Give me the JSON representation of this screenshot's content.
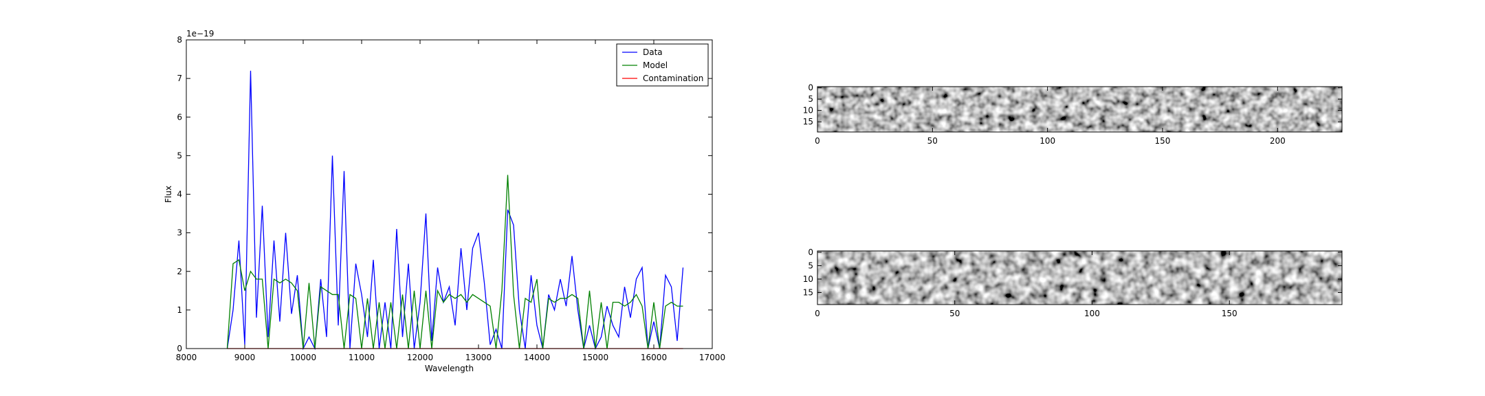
{
  "chart_data": [
    {
      "type": "line",
      "xlabel": "Wavelength",
      "ylabel": "Flux",
      "offset_text": "1e−19",
      "x": [
        8700,
        8800,
        8900,
        9000,
        9100,
        9200,
        9300,
        9400,
        9500,
        9600,
        9700,
        9800,
        9900,
        10000,
        10100,
        10200,
        10300,
        10400,
        10500,
        10600,
        10700,
        10800,
        10900,
        11000,
        11100,
        11200,
        11300,
        11400,
        11500,
        11600,
        11700,
        11800,
        11900,
        12000,
        12100,
        12200,
        12300,
        12400,
        12500,
        12600,
        12700,
        12800,
        12900,
        13000,
        13100,
        13200,
        13300,
        13400,
        13500,
        13600,
        13700,
        13800,
        13900,
        14000,
        14100,
        14200,
        14300,
        14400,
        14500,
        14600,
        14700,
        14800,
        14900,
        15000,
        15100,
        15200,
        15300,
        15400,
        15500,
        15600,
        15700,
        15800,
        15900,
        16000,
        16100,
        16200,
        16300,
        16400,
        16500
      ],
      "series": [
        {
          "name": "Data",
          "color": "#0000ff",
          "values": [
            0,
            1.0,
            2.8,
            0.1,
            7.2,
            0.8,
            3.7,
            0.3,
            2.8,
            0.7,
            3.0,
            0.9,
            1.9,
            0,
            0.3,
            0,
            1.8,
            0.3,
            5.0,
            0.6,
            4.6,
            0,
            2.2,
            1.4,
            0.3,
            2.3,
            0,
            1.2,
            0,
            3.1,
            0.3,
            2.2,
            0,
            1.2,
            3.5,
            0.2,
            2.1,
            1.2,
            1.6,
            0.6,
            2.6,
            1.0,
            2.6,
            3.0,
            1.7,
            0.1,
            0.5,
            0,
            3.6,
            3.2,
            1.0,
            0,
            1.9,
            0.6,
            0,
            1.4,
            1.0,
            1.8,
            1.1,
            2.4,
            1.0,
            0,
            0.6,
            0,
            0.3,
            1.1,
            0.6,
            0.3,
            1.6,
            0.8,
            1.8,
            2.1,
            0,
            0.7,
            0,
            1.9,
            1.6,
            0.2,
            2.1
          ]
        },
        {
          "name": "Model",
          "color": "#008000",
          "values": [
            0,
            2.2,
            2.3,
            1.5,
            2.0,
            1.8,
            1.8,
            0,
            1.8,
            1.7,
            1.8,
            1.7,
            1.5,
            0,
            1.7,
            0,
            1.6,
            1.5,
            1.4,
            1.4,
            0,
            1.4,
            1.3,
            0,
            1.3,
            0,
            1.2,
            0,
            1.2,
            0,
            1.4,
            0,
            1.5,
            0,
            1.5,
            0,
            1.5,
            1.2,
            1.4,
            1.3,
            1.4,
            1.2,
            1.4,
            1.3,
            1.2,
            1.1,
            0,
            1.5,
            4.5,
            1.4,
            0,
            1.3,
            1.2,
            1.8,
            0,
            1.3,
            1.2,
            1.3,
            1.3,
            1.4,
            1.3,
            0,
            1.5,
            0,
            1.2,
            0,
            1.2,
            1.2,
            1.1,
            1.2,
            1.4,
            1.1,
            0,
            1.2,
            0,
            1.1,
            1.2,
            1.1,
            1.1
          ]
        },
        {
          "name": "Contamination",
          "color": "#ff0000",
          "values": [
            0,
            0,
            0,
            0,
            0,
            0,
            0,
            0,
            0,
            0,
            0,
            0,
            0,
            0,
            0,
            0,
            0,
            0,
            0,
            0,
            0,
            0,
            0,
            0,
            0,
            0,
            0,
            0,
            0,
            0,
            0,
            0,
            0,
            0,
            0,
            0,
            0,
            0,
            0,
            0,
            0,
            0,
            0,
            0,
            0,
            0,
            0,
            0,
            0,
            0,
            0,
            0,
            0,
            0,
            0,
            0,
            0,
            0,
            0,
            0,
            0,
            0,
            0,
            0,
            0,
            0,
            0,
            0,
            0,
            0,
            0,
            0,
            0,
            0,
            0,
            0,
            0,
            0,
            0
          ]
        }
      ],
      "xlim": [
        8000,
        17000
      ],
      "xticks": [
        8000,
        9000,
        10000,
        11000,
        12000,
        13000,
        14000,
        15000,
        16000,
        17000
      ],
      "ylim": [
        0,
        8
      ],
      "yticks": [
        0,
        1,
        2,
        3,
        4,
        5,
        6,
        7,
        8
      ],
      "legend": "upper right"
    },
    {
      "type": "image",
      "xlim": [
        0,
        228
      ],
      "xticks": [
        0,
        50,
        100,
        150,
        200
      ],
      "ylim": [
        19.5,
        -0.5
      ],
      "yticks": [
        0,
        5,
        10,
        15
      ]
    },
    {
      "type": "image",
      "xlim": [
        0,
        191
      ],
      "xticks": [
        0,
        50,
        100,
        150
      ],
      "ylim": [
        19.5,
        -0.5
      ],
      "yticks": [
        0,
        5,
        10,
        15
      ]
    }
  ]
}
